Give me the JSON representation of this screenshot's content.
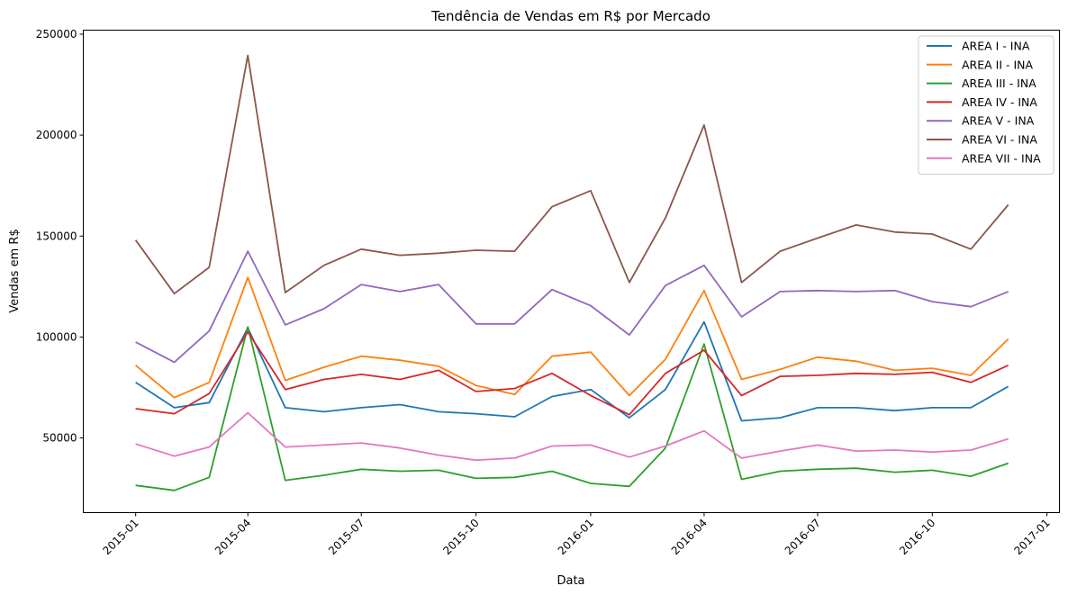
{
  "chart_data": {
    "type": "line",
    "title": "Tendência de Vendas em R$ por Mercado",
    "xlabel": "Data",
    "ylabel": "Vendas em R$",
    "x": [
      "2015-01",
      "2015-02",
      "2015-03",
      "2015-04",
      "2015-05",
      "2015-06",
      "2015-07",
      "2015-08",
      "2015-09",
      "2015-10",
      "2015-11",
      "2015-12",
      "2016-01",
      "2016-02",
      "2016-03",
      "2016-04",
      "2016-05",
      "2016-06",
      "2016-07",
      "2016-08",
      "2016-09",
      "2016-10",
      "2016-11",
      "2016-12"
    ],
    "x_ticks": [
      "2015-01",
      "2015-04",
      "2015-07",
      "2015-10",
      "2016-01",
      "2016-04",
      "2016-07",
      "2016-10",
      "2017-01"
    ],
    "y_ticks": [
      50000,
      100000,
      150000,
      200000,
      250000
    ],
    "ylim": [
      13000,
      252000
    ],
    "xlim": [
      "2014-11-20",
      "2017-01-11"
    ],
    "legend": "top-right",
    "grid": false,
    "series": [
      {
        "name": "AREA I - INA",
        "color": "#1f77b4",
        "values": [
          77500,
          65000,
          67500,
          104500,
          65000,
          63000,
          65000,
          66500,
          63000,
          62000,
          60500,
          70500,
          74000,
          60000,
          74000,
          107500,
          58500,
          60000,
          65000,
          65000,
          63500,
          65000,
          65000,
          75500
        ]
      },
      {
        "name": "AREA II - INA",
        "color": "#ff7f0e",
        "values": [
          86000,
          70000,
          77500,
          129500,
          78500,
          85000,
          90500,
          88500,
          85500,
          76000,
          71500,
          90500,
          92500,
          71000,
          89000,
          123000,
          79000,
          84000,
          90000,
          88000,
          83500,
          84500,
          81000,
          99000
        ]
      },
      {
        "name": "AREA III - INA",
        "color": "#2ca02c",
        "values": [
          26500,
          24000,
          30500,
          105000,
          29000,
          31500,
          34500,
          33500,
          34000,
          30000,
          30500,
          33500,
          27500,
          26000,
          45000,
          96500,
          29500,
          33500,
          34500,
          35000,
          33000,
          34000,
          31000,
          37500
        ]
      },
      {
        "name": "AREA IV - INA",
        "color": "#d62728",
        "values": [
          64500,
          62000,
          72000,
          102500,
          74000,
          79000,
          81500,
          79000,
          83500,
          73000,
          74500,
          82000,
          71000,
          61500,
          82000,
          93500,
          71000,
          80500,
          81000,
          82000,
          81500,
          82500,
          77500,
          86000
        ]
      },
      {
        "name": "AREA V - INA",
        "color": "#9467bd",
        "values": [
          97500,
          87500,
          103000,
          142500,
          106000,
          114000,
          126000,
          122500,
          126000,
          106500,
          106500,
          123500,
          115500,
          101000,
          125500,
          135500,
          110000,
          122500,
          123000,
          122500,
          123000,
          117500,
          115000,
          122500
        ]
      },
      {
        "name": "AREA VI - INA",
        "color": "#8c564b",
        "values": [
          148000,
          121500,
          134500,
          239500,
          122000,
          135500,
          143500,
          140500,
          141500,
          143000,
          142500,
          164500,
          172500,
          127000,
          159000,
          205000,
          127000,
          142500,
          149000,
          155500,
          152000,
          151000,
          143500,
          165500
        ]
      },
      {
        "name": "AREA VII - INA",
        "color": "#e377c2",
        "values": [
          47000,
          41000,
          45500,
          62500,
          45500,
          46500,
          47500,
          45000,
          41500,
          39000,
          40000,
          46000,
          46500,
          40500,
          46000,
          53500,
          40000,
          43500,
          46500,
          43500,
          44000,
          43000,
          44000,
          49500
        ]
      }
    ]
  }
}
